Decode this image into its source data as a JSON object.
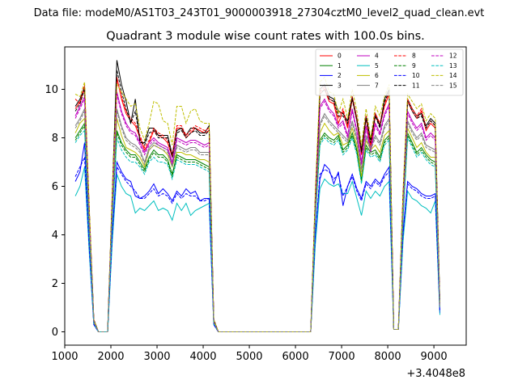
{
  "suptitle": "Data file: modeM0/AS1T03_243T01_9000003918_27304cztM0_level2_quad_clean.evt",
  "chart_data": {
    "type": "line",
    "title": "Quadrant 3 module wise count rates with 100.0s bins.",
    "xlabel": "",
    "ylabel": "",
    "x_offset_label": "+3.4048e8",
    "xlim": [
      1000,
      9700
    ],
    "ylim": [
      -0.55,
      11.75
    ],
    "xticks": [
      1000,
      2000,
      3000,
      4000,
      5000,
      6000,
      7000,
      8000,
      9000
    ],
    "xtick_labels": [
      "1000",
      "2000",
      "3000",
      "4000",
      "5000",
      "6000",
      "7000",
      "8000",
      "9000"
    ],
    "yticks": [
      0,
      2,
      4,
      6,
      8,
      10
    ],
    "ytick_labels": [
      "0",
      "2",
      "4",
      "6",
      "8",
      "10"
    ],
    "grid": false,
    "legend": "top-right",
    "legend_columns": 4,
    "x": [
      1230,
      1330,
      1430,
      1530,
      1630,
      1730,
      1830,
      1930,
      2030,
      2130,
      2230,
      2330,
      2430,
      2530,
      2630,
      2730,
      2830,
      2930,
      3030,
      3130,
      3230,
      3330,
      3430,
      3530,
      3630,
      3730,
      3830,
      3930,
      4030,
      4130,
      4230,
      4330,
      4430,
      6330,
      6430,
      6530,
      6630,
      6730,
      6830,
      6930,
      7030,
      7130,
      7230,
      7330,
      7430,
      7530,
      7630,
      7730,
      7830,
      7930,
      8030,
      8130,
      8230,
      8330,
      8430,
      8530,
      8630,
      8730,
      8830,
      8930,
      9030,
      9130
    ],
    "series": [
      {
        "name": "0",
        "color": "#ff0000",
        "dash": "solid",
        "values": [
          9.2,
          9.5,
          10.0,
          5.0,
          0.5,
          0.0,
          0.0,
          0.0,
          5.5,
          10.5,
          9.6,
          9.0,
          8.7,
          8.5,
          8.0,
          7.5,
          7.8,
          8.3,
          8.1,
          8.0,
          7.8,
          7.2,
          8.4,
          8.4,
          8.0,
          8.2,
          8.4,
          8.3,
          8.2,
          8.3,
          0.5,
          0.0,
          0.0,
          0.0,
          5.5,
          9.8,
          10.0,
          9.5,
          9.4,
          8.6,
          9.1,
          8.4,
          9.6,
          8.7,
          7.3,
          8.8,
          7.6,
          8.9,
          8.5,
          9.3,
          9.8,
          0.1,
          0.1,
          5.5,
          9.5,
          9.1,
          8.8,
          9.1,
          8.3,
          8.6,
          8.4,
          1.0
        ]
      },
      {
        "name": "1",
        "color": "#008000",
        "dash": "solid",
        "values": [
          8.0,
          8.3,
          8.6,
          4.2,
          0.4,
          0.0,
          0.0,
          0.0,
          4.8,
          8.3,
          7.8,
          7.5,
          7.3,
          7.3,
          7.0,
          6.7,
          7.2,
          7.5,
          7.3,
          7.3,
          7.1,
          6.5,
          7.3,
          7.2,
          7.1,
          7.1,
          7.1,
          7.0,
          6.9,
          6.8,
          0.4,
          0.0,
          0.0,
          0.0,
          4.8,
          7.9,
          8.2,
          8.0,
          7.9,
          8.1,
          7.5,
          7.7,
          8.2,
          7.5,
          6.3,
          7.7,
          7.4,
          7.5,
          7.2,
          7.9,
          8.1,
          0.1,
          0.1,
          4.8,
          8.2,
          7.8,
          7.4,
          7.6,
          7.3,
          7.1,
          7.0,
          1.0
        ]
      },
      {
        "name": "2",
        "color": "#0000ff",
        "dash": "solid",
        "values": [
          6.2,
          6.6,
          7.8,
          3.6,
          0.3,
          0.0,
          0.0,
          0.0,
          4.0,
          7.0,
          6.6,
          6.3,
          6.2,
          5.6,
          5.5,
          5.6,
          5.8,
          6.1,
          5.7,
          5.9,
          5.7,
          5.4,
          5.8,
          5.6,
          5.9,
          5.7,
          5.8,
          5.4,
          5.5,
          5.5,
          0.3,
          0.0,
          0.0,
          0.0,
          4.0,
          6.3,
          6.9,
          6.7,
          6.1,
          6.6,
          5.2,
          6.0,
          6.5,
          5.9,
          5.5,
          6.2,
          6.0,
          6.3,
          6.1,
          6.5,
          6.8,
          0.1,
          0.1,
          4.1,
          6.2,
          6.0,
          5.9,
          5.7,
          5.6,
          5.6,
          5.7,
          0.8
        ]
      },
      {
        "name": "3",
        "color": "#000000",
        "dash": "solid",
        "values": [
          9.3,
          9.6,
          10.1,
          5.1,
          0.5,
          0.0,
          0.0,
          0.0,
          5.7,
          11.2,
          10.2,
          9.5,
          8.6,
          9.6,
          7.8,
          7.8,
          8.4,
          8.4,
          8.1,
          8.1,
          8.1,
          7.3,
          8.3,
          8.4,
          8.1,
          8.4,
          8.4,
          8.2,
          8.2,
          8.5,
          0.5,
          0.0,
          0.0,
          0.0,
          5.6,
          10.0,
          10.2,
          9.7,
          9.6,
          9.1,
          9.0,
          8.7,
          9.7,
          8.8,
          7.5,
          8.9,
          7.9,
          9.0,
          8.5,
          9.6,
          10.0,
          0.1,
          0.1,
          5.6,
          9.6,
          9.2,
          8.9,
          9.0,
          8.5,
          8.8,
          8.6,
          1.1
        ]
      },
      {
        "name": "4",
        "color": "#bf00bf",
        "dash": "solid",
        "values": [
          8.9,
          9.3,
          9.7,
          4.8,
          0.5,
          0.0,
          0.0,
          0.0,
          5.3,
          9.9,
          9.1,
          8.6,
          8.3,
          8.2,
          7.8,
          7.4,
          7.8,
          8.0,
          7.8,
          7.7,
          7.6,
          7.0,
          8.0,
          7.9,
          7.8,
          7.9,
          7.9,
          7.8,
          7.7,
          7.8,
          0.5,
          0.0,
          0.0,
          0.0,
          5.2,
          9.3,
          9.6,
          9.2,
          9.0,
          8.5,
          8.7,
          8.1,
          9.2,
          8.3,
          7.0,
          8.5,
          7.5,
          8.6,
          8.2,
          9.0,
          9.4,
          0.1,
          0.1,
          5.3,
          9.1,
          8.7,
          8.4,
          8.6,
          8.0,
          8.2,
          8.0,
          1.0
        ]
      },
      {
        "name": "5",
        "color": "#00bfbf",
        "dash": "solid",
        "values": [
          5.6,
          6.0,
          6.8,
          3.3,
          0.3,
          0.0,
          0.0,
          0.0,
          3.7,
          6.5,
          6.0,
          5.7,
          5.6,
          4.9,
          5.1,
          5.0,
          5.2,
          5.4,
          5.0,
          5.1,
          5.0,
          4.6,
          5.3,
          5.0,
          5.3,
          4.8,
          5.0,
          5.1,
          5.2,
          5.3,
          0.3,
          0.0,
          0.0,
          0.0,
          3.6,
          5.9,
          6.3,
          6.1,
          6.0,
          6.1,
          5.7,
          5.7,
          6.2,
          5.5,
          4.8,
          5.8,
          5.5,
          5.8,
          5.6,
          6.0,
          6.2,
          0.1,
          0.1,
          3.7,
          5.8,
          5.5,
          5.4,
          5.2,
          5.1,
          4.9,
          5.4,
          0.7
        ]
      },
      {
        "name": "6",
        "color": "#bfbf00",
        "dash": "solid",
        "values": [
          8.2,
          8.6,
          8.8,
          4.3,
          0.4,
          0.0,
          0.0,
          0.0,
          4.9,
          8.8,
          8.1,
          7.6,
          7.5,
          7.4,
          7.2,
          6.8,
          7.5,
          7.7,
          7.6,
          7.5,
          7.3,
          6.8,
          7.4,
          7.4,
          7.3,
          7.3,
          7.2,
          7.1,
          7.1,
          7.0,
          0.4,
          0.0,
          0.0,
          0.0,
          4.9,
          8.2,
          8.6,
          8.3,
          8.1,
          8.2,
          7.7,
          7.8,
          8.4,
          7.7,
          6.4,
          7.9,
          7.5,
          7.7,
          7.4,
          8.1,
          8.3,
          0.1,
          0.1,
          4.9,
          8.4,
          8.0,
          7.6,
          7.8,
          7.4,
          7.2,
          7.2,
          1.0
        ]
      },
      {
        "name": "7",
        "color": "#808080",
        "dash": "solid",
        "values": [
          8.5,
          8.8,
          9.2,
          4.5,
          0.4,
          0.0,
          0.0,
          0.0,
          5.0,
          9.2,
          8.5,
          8.0,
          7.8,
          7.7,
          7.5,
          7.0,
          7.6,
          7.8,
          7.7,
          7.6,
          7.5,
          6.9,
          7.7,
          7.6,
          7.5,
          7.6,
          7.6,
          7.4,
          7.4,
          7.4,
          0.4,
          0.0,
          0.0,
          0.0,
          5.0,
          8.6,
          9.0,
          8.7,
          8.5,
          8.3,
          8.1,
          7.9,
          8.7,
          8.0,
          6.7,
          8.1,
          7.6,
          8.1,
          7.8,
          8.5,
          8.8,
          0.1,
          0.1,
          5.0,
          8.7,
          8.3,
          8.0,
          8.2,
          7.7,
          7.6,
          7.5,
          1.0
        ]
      },
      {
        "name": "8",
        "color": "#ff0000",
        "dash": "dashed",
        "values": [
          9.6,
          9.4,
          10.2,
          5.1,
          0.5,
          0.0,
          0.0,
          0.0,
          5.6,
          10.4,
          9.7,
          9.1,
          8.8,
          8.6,
          8.1,
          7.6,
          7.9,
          8.4,
          8.2,
          8.1,
          7.9,
          7.3,
          8.5,
          8.5,
          8.1,
          8.3,
          8.5,
          8.4,
          8.3,
          8.4,
          0.5,
          0.0,
          0.0,
          0.0,
          5.6,
          9.9,
          10.1,
          9.6,
          9.5,
          8.8,
          9.2,
          8.5,
          9.7,
          8.8,
          7.4,
          8.9,
          7.7,
          9.0,
          8.6,
          9.4,
          9.9,
          0.1,
          0.1,
          5.6,
          9.6,
          9.2,
          8.9,
          9.2,
          8.4,
          8.7,
          8.5,
          1.0
        ]
      },
      {
        "name": "9",
        "color": "#008000",
        "dash": "dashed",
        "values": [
          7.9,
          8.2,
          8.5,
          4.2,
          0.4,
          0.0,
          0.0,
          0.0,
          4.7,
          8.2,
          7.7,
          7.4,
          7.2,
          7.2,
          6.9,
          6.6,
          7.1,
          7.4,
          7.2,
          7.2,
          7.0,
          6.4,
          7.2,
          7.1,
          7.0,
          7.0,
          7.0,
          6.9,
          6.8,
          6.7,
          0.4,
          0.0,
          0.0,
          0.0,
          4.7,
          7.8,
          8.1,
          7.9,
          7.8,
          8.0,
          7.4,
          7.6,
          8.1,
          7.4,
          6.2,
          7.6,
          7.3,
          7.4,
          7.1,
          7.8,
          8.0,
          0.1,
          0.1,
          4.7,
          8.1,
          7.7,
          7.3,
          7.5,
          7.2,
          7.0,
          6.9,
          1.0
        ]
      },
      {
        "name": "10",
        "color": "#0000ff",
        "dash": "dashed",
        "values": [
          6.4,
          6.8,
          7.2,
          3.5,
          0.3,
          0.0,
          0.0,
          0.0,
          4.0,
          6.8,
          6.5,
          6.2,
          6.0,
          5.8,
          5.5,
          5.5,
          5.7,
          5.9,
          5.6,
          5.7,
          5.6,
          5.3,
          5.7,
          5.5,
          5.7,
          5.6,
          5.6,
          5.4,
          5.4,
          5.5,
          0.3,
          0.0,
          0.0,
          0.0,
          4.0,
          6.5,
          6.7,
          6.6,
          6.3,
          6.5,
          5.6,
          6.0,
          6.4,
          5.8,
          5.4,
          6.1,
          5.9,
          6.2,
          6.0,
          6.4,
          6.6,
          0.1,
          0.1,
          4.0,
          6.1,
          5.9,
          5.8,
          5.6,
          5.5,
          5.5,
          5.6,
          0.8
        ]
      },
      {
        "name": "11",
        "color": "#000000",
        "dash": "dashed",
        "values": [
          9.1,
          9.4,
          10.0,
          5.0,
          0.5,
          0.0,
          0.0,
          0.0,
          5.5,
          10.8,
          9.9,
          9.2,
          8.6,
          9.1,
          7.9,
          7.7,
          8.2,
          8.3,
          8.0,
          8.0,
          8.0,
          7.2,
          8.2,
          8.3,
          8.0,
          8.2,
          8.3,
          8.1,
          8.1,
          8.3,
          0.5,
          0.0,
          0.0,
          0.0,
          5.5,
          9.8,
          10.0,
          9.6,
          9.5,
          8.9,
          8.9,
          8.6,
          9.6,
          8.7,
          7.4,
          8.8,
          7.8,
          8.9,
          8.4,
          9.5,
          9.9,
          0.1,
          0.1,
          5.5,
          9.5,
          9.1,
          8.8,
          8.9,
          8.4,
          8.7,
          8.5,
          1.1
        ]
      },
      {
        "name": "12",
        "color": "#bf00bf",
        "dash": "dashed",
        "values": [
          8.8,
          9.2,
          9.6,
          4.7,
          0.4,
          0.0,
          0.0,
          0.0,
          5.2,
          9.8,
          9.0,
          8.5,
          8.2,
          8.1,
          7.7,
          7.3,
          7.7,
          7.9,
          7.7,
          7.6,
          7.5,
          6.9,
          7.9,
          7.8,
          7.7,
          7.8,
          7.8,
          7.7,
          7.6,
          7.7,
          0.4,
          0.0,
          0.0,
          0.0,
          5.1,
          9.2,
          9.5,
          9.1,
          8.9,
          8.4,
          8.6,
          8.0,
          9.1,
          8.2,
          6.9,
          8.4,
          7.4,
          8.5,
          8.1,
          8.9,
          9.3,
          0.1,
          0.1,
          5.2,
          9.0,
          8.6,
          8.3,
          8.5,
          7.9,
          8.1,
          7.9,
          1.0
        ]
      },
      {
        "name": "13",
        "color": "#00bfbf",
        "dash": "dashed",
        "values": [
          7.8,
          8.1,
          8.3,
          4.1,
          0.4,
          0.0,
          0.0,
          0.0,
          4.6,
          8.0,
          7.5,
          7.2,
          7.0,
          7.0,
          6.8,
          6.5,
          7.0,
          7.2,
          7.0,
          7.0,
          6.9,
          6.3,
          7.1,
          7.0,
          6.9,
          6.9,
          6.9,
          6.8,
          6.7,
          6.6,
          0.4,
          0.0,
          0.0,
          0.0,
          4.6,
          7.7,
          8.0,
          7.8,
          7.7,
          7.9,
          7.3,
          7.5,
          8.0,
          7.3,
          6.1,
          7.5,
          7.2,
          7.3,
          7.0,
          7.7,
          7.9,
          0.1,
          0.1,
          4.6,
          8.0,
          7.6,
          7.2,
          7.4,
          7.1,
          6.9,
          6.8,
          1.0
        ]
      },
      {
        "name": "14",
        "color": "#bfbf00",
        "dash": "dashed",
        "values": [
          9.8,
          9.7,
          10.3,
          5.2,
          0.5,
          0.0,
          0.0,
          0.0,
          5.8,
          10.2,
          9.9,
          9.6,
          9.3,
          9.4,
          8.4,
          7.9,
          8.6,
          9.5,
          9.4,
          8.7,
          8.6,
          7.7,
          9.3,
          9.3,
          8.6,
          9.1,
          9.2,
          8.7,
          8.6,
          8.6,
          0.5,
          0.0,
          0.0,
          0.0,
          5.8,
          10.3,
          10.5,
          9.9,
          9.8,
          9.0,
          9.6,
          8.8,
          10.0,
          9.1,
          7.7,
          9.2,
          8.0,
          9.3,
          8.9,
          9.7,
          10.2,
          0.1,
          0.1,
          5.8,
          9.8,
          9.5,
          9.2,
          9.4,
          8.7,
          9.0,
          8.8,
          1.1
        ]
      },
      {
        "name": "15",
        "color": "#808080",
        "dash": "dashed",
        "values": [
          8.4,
          8.7,
          9.1,
          4.5,
          0.4,
          0.0,
          0.0,
          0.0,
          5.0,
          9.1,
          8.4,
          7.9,
          7.7,
          7.6,
          7.4,
          6.9,
          7.5,
          7.7,
          7.6,
          7.5,
          7.4,
          6.8,
          7.6,
          7.5,
          7.4,
          7.5,
          7.5,
          7.3,
          7.3,
          7.3,
          0.4,
          0.0,
          0.0,
          0.0,
          4.9,
          8.5,
          8.9,
          8.6,
          8.4,
          8.2,
          8.0,
          7.8,
          8.6,
          7.9,
          6.6,
          8.0,
          7.5,
          8.0,
          7.7,
          8.4,
          8.7,
          0.1,
          0.1,
          4.9,
          8.6,
          8.2,
          7.9,
          8.1,
          7.6,
          7.5,
          7.4,
          1.0
        ]
      }
    ]
  }
}
